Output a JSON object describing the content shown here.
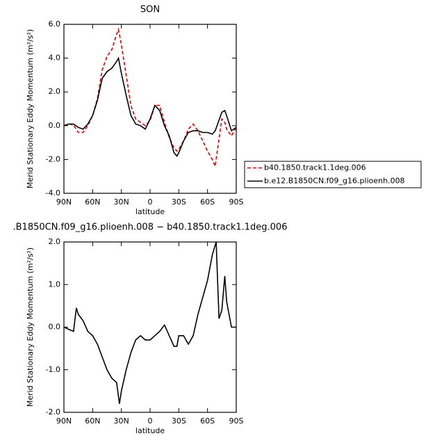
{
  "chart_data": [
    {
      "type": "line",
      "title": "SON",
      "xlabel": "latitude",
      "ylabel": "Merid Stationary Eddy Momentum (m²/s²)",
      "legend": "right",
      "x": [
        90,
        85,
        80,
        75,
        70,
        65,
        60,
        55,
        50,
        45,
        40,
        35,
        33,
        30,
        25,
        20,
        15,
        10,
        5,
        0,
        -5,
        -10,
        -15,
        -20,
        -25,
        -28,
        -30,
        -35,
        -40,
        -45,
        -50,
        -55,
        -60,
        -65,
        -68,
        -70,
        -75,
        -78,
        -80,
        -85,
        -90
      ],
      "series": [
        {
          "name": "b40.1850.track1.1deg.006",
          "color": "#e00000",
          "dash": true,
          "values": [
            0.0,
            0.1,
            0.05,
            -0.4,
            -0.4,
            0.0,
            0.6,
            1.6,
            3.3,
            4.1,
            4.5,
            5.4,
            5.7,
            4.8,
            3.0,
            1.2,
            0.4,
            0.2,
            0.0,
            0.3,
            1.2,
            1.2,
            0.2,
            -0.7,
            -1.3,
            -1.5,
            -1.4,
            -0.9,
            -0.2,
            0.1,
            -0.3,
            -0.9,
            -1.5,
            -2.0,
            -2.4,
            -1.6,
            0.4,
            0.2,
            -0.2,
            -0.6,
            -0.1
          ]
        },
        {
          "name": "b.e12.B1850CN.f09_g16.plioenh.008",
          "color": "#000000",
          "dash": false,
          "values": [
            0.0,
            0.1,
            0.1,
            -0.1,
            -0.2,
            0.1,
            0.6,
            1.5,
            2.8,
            3.2,
            3.4,
            3.8,
            4.0,
            3.1,
            1.8,
            0.6,
            0.1,
            0.0,
            -0.2,
            0.4,
            1.2,
            0.9,
            0.0,
            -0.6,
            -1.6,
            -1.8,
            -1.6,
            -0.9,
            -0.4,
            -0.3,
            -0.3,
            -0.4,
            -0.4,
            -0.5,
            -0.3,
            0.0,
            0.8,
            0.9,
            0.6,
            -0.3,
            -0.1
          ]
        }
      ],
      "xlim": [
        90,
        -90
      ],
      "xticks": [
        {
          "value": 90,
          "label": "90N"
        },
        {
          "value": 60,
          "label": "60N"
        },
        {
          "value": 30,
          "label": "30N"
        },
        0,
        {
          "value": -30,
          "label": "30S"
        },
        {
          "value": -60,
          "label": "60S"
        },
        {
          "value": -90,
          "label": "90S"
        }
      ],
      "ylim": [
        -4,
        6
      ],
      "yticks": [
        {
          "value": -4,
          "label": "-4.0"
        },
        {
          "value": -2,
          "label": "-2.0"
        },
        {
          "value": 0,
          "label": "0.0"
        },
        {
          "value": 2,
          "label": "2.0"
        },
        {
          "value": 4,
          "label": "4.0"
        },
        {
          "value": 6,
          "label": "6.0"
        }
      ]
    },
    {
      "type": "line",
      "title": ".B1850CN.f09_g16.plioenh.008 − b40.1850.track1.1deg.006",
      "xlabel": "latitude",
      "ylabel": "Merid Stationary Eddy Momentum (m²/s²)",
      "x": [
        90,
        85,
        80,
        77,
        75,
        70,
        65,
        60,
        55,
        50,
        45,
        40,
        35,
        32,
        30,
        25,
        20,
        15,
        10,
        5,
        0,
        -5,
        -10,
        -15,
        -20,
        -25,
        -28,
        -30,
        -35,
        -40,
        -45,
        -50,
        -55,
        -60,
        -65,
        -69,
        -72,
        -75,
        -78,
        -80,
        -85,
        -90
      ],
      "series": [
        {
          "color": "#000000",
          "dash": false,
          "values": [
            0.0,
            -0.05,
            -0.1,
            0.45,
            0.3,
            0.15,
            -0.1,
            -0.2,
            -0.4,
            -0.7,
            -1.0,
            -1.2,
            -1.3,
            -1.8,
            -1.5,
            -1.0,
            -0.6,
            -0.3,
            -0.2,
            -0.3,
            -0.3,
            -0.2,
            -0.1,
            0.05,
            -0.2,
            -0.45,
            -0.45,
            -0.2,
            -0.2,
            -0.4,
            -0.2,
            0.3,
            0.7,
            1.1,
            1.7,
            2.0,
            0.2,
            0.4,
            1.2,
            0.6,
            0.0,
            0.0
          ]
        }
      ],
      "xlim": [
        90,
        -90
      ],
      "xticks": [
        {
          "value": 90,
          "label": "90N"
        },
        {
          "value": 60,
          "label": "60N"
        },
        {
          "value": 30,
          "label": "30N"
        },
        0,
        {
          "value": -30,
          "label": "30S"
        },
        {
          "value": -60,
          "label": "60S"
        },
        {
          "value": -90,
          "label": "90S"
        }
      ],
      "ylim": [
        -2,
        2
      ],
      "yticks": [
        {
          "value": -2,
          "label": "-2.0"
        },
        {
          "value": -1,
          "label": "-1.0"
        },
        {
          "value": 0,
          "label": "0.0"
        },
        {
          "value": 1,
          "label": "1.0"
        },
        {
          "value": 2,
          "label": "2.0"
        }
      ]
    }
  ]
}
